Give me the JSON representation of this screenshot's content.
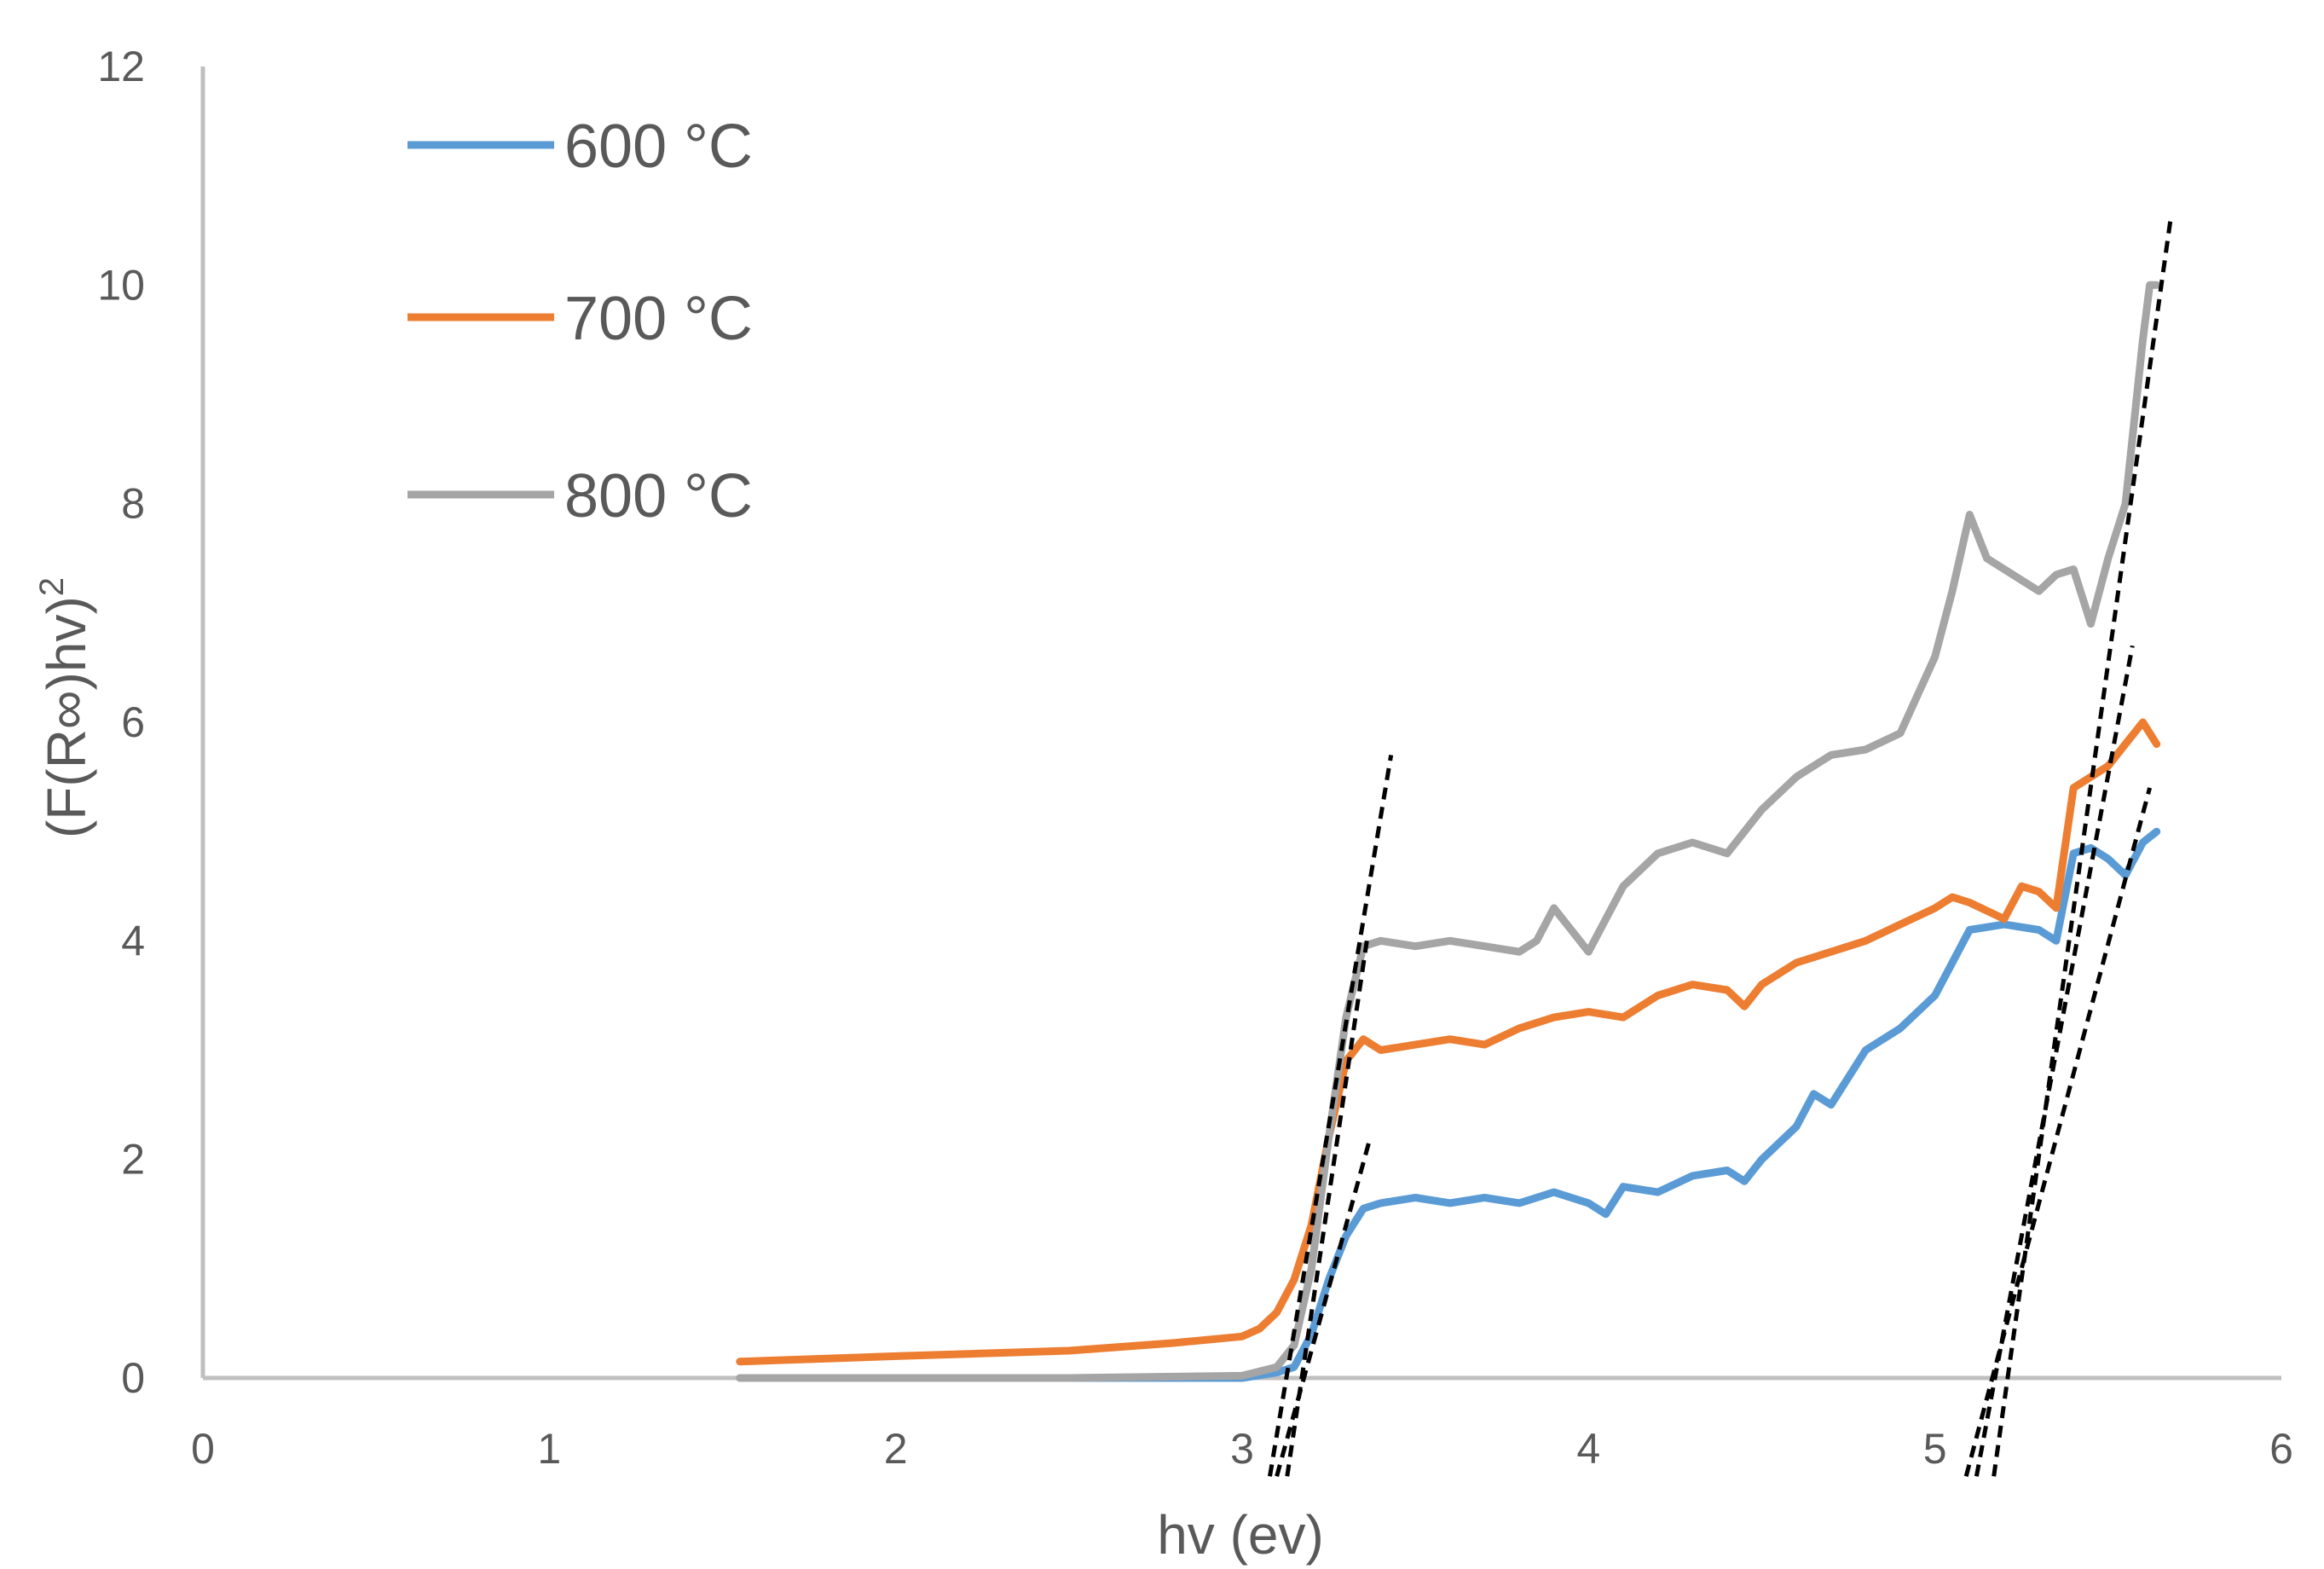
{
  "chart_data": {
    "type": "line",
    "title": "",
    "xlabel": "hv (ev)",
    "ylabel_main": "(F(R∞)hv)",
    "ylabel_sup": "2",
    "xlim": [
      0,
      6
    ],
    "ylim": [
      0,
      12
    ],
    "xticks": [
      "0",
      "1",
      "2",
      "3",
      "4",
      "5",
      "6"
    ],
    "yticks": [
      "0",
      "2",
      "4",
      "6",
      "8",
      "10",
      "12"
    ],
    "grid": false,
    "legend_position": "top-left",
    "series": [
      {
        "name": "600 °C",
        "color": "#5B9BD5",
        "x": [
          1.55,
          2.0,
          2.5,
          3.0,
          3.1,
          3.15,
          3.2,
          3.25,
          3.3,
          3.35,
          3.4,
          3.5,
          3.6,
          3.7,
          3.8,
          3.9,
          4.0,
          4.05,
          4.1,
          4.2,
          4.3,
          4.4,
          4.45,
          4.5,
          4.6,
          4.65,
          4.7,
          4.8,
          4.9,
          5.0,
          5.05,
          5.1,
          5.2,
          5.3,
          5.35,
          5.4,
          5.45,
          5.5,
          5.55,
          5.6,
          5.64
        ],
        "y": [
          0.0,
          0.0,
          0.0,
          0.0,
          0.05,
          0.1,
          0.4,
          0.9,
          1.3,
          1.55,
          1.6,
          1.65,
          1.6,
          1.65,
          1.6,
          1.7,
          1.6,
          1.5,
          1.75,
          1.7,
          1.85,
          1.9,
          1.8,
          2.0,
          2.3,
          2.6,
          2.5,
          3.0,
          3.2,
          3.5,
          3.8,
          4.1,
          4.15,
          4.1,
          4.0,
          4.8,
          4.85,
          4.75,
          4.6,
          4.9,
          5.0
        ]
      },
      {
        "name": "700 °C",
        "color": "#ED7D31",
        "x": [
          1.55,
          2.0,
          2.5,
          2.8,
          3.0,
          3.05,
          3.1,
          3.15,
          3.2,
          3.25,
          3.3,
          3.35,
          3.4,
          3.5,
          3.6,
          3.7,
          3.8,
          3.9,
          4.0,
          4.1,
          4.2,
          4.3,
          4.4,
          4.45,
          4.5,
          4.6,
          4.7,
          4.8,
          4.9,
          5.0,
          5.05,
          5.1,
          5.2,
          5.25,
          5.3,
          5.35,
          5.4,
          5.45,
          5.5,
          5.55,
          5.6,
          5.64
        ],
        "y": [
          0.15,
          0.2,
          0.25,
          0.32,
          0.38,
          0.45,
          0.6,
          0.9,
          1.4,
          2.2,
          2.9,
          3.1,
          3.0,
          3.05,
          3.1,
          3.05,
          3.2,
          3.3,
          3.35,
          3.3,
          3.5,
          3.6,
          3.55,
          3.4,
          3.6,
          3.8,
          3.9,
          4.0,
          4.15,
          4.3,
          4.4,
          4.35,
          4.2,
          4.5,
          4.45,
          4.3,
          5.4,
          5.5,
          5.6,
          5.8,
          6.0,
          5.8
        ]
      },
      {
        "name": "800 °C",
        "color": "#A5A5A5",
        "x": [
          1.55,
          2.0,
          2.5,
          3.0,
          3.1,
          3.15,
          3.2,
          3.25,
          3.3,
          3.35,
          3.4,
          3.5,
          3.6,
          3.7,
          3.8,
          3.85,
          3.9,
          3.95,
          4.0,
          4.05,
          4.1,
          4.2,
          4.3,
          4.4,
          4.45,
          4.5,
          4.6,
          4.7,
          4.8,
          4.9,
          5.0,
          5.05,
          5.1,
          5.15,
          5.2,
          5.25,
          5.3,
          5.35,
          5.4,
          5.45,
          5.5,
          5.55,
          5.6,
          5.62,
          5.64
        ],
        "y": [
          0.0,
          0.0,
          0.0,
          0.02,
          0.1,
          0.3,
          1.0,
          2.2,
          3.3,
          3.95,
          4.0,
          3.95,
          4.0,
          3.95,
          3.9,
          4.0,
          4.3,
          4.1,
          3.9,
          4.2,
          4.5,
          4.8,
          4.9,
          4.8,
          5.0,
          5.2,
          5.5,
          5.7,
          5.75,
          5.9,
          6.6,
          7.2,
          7.9,
          7.5,
          7.4,
          7.3,
          7.2,
          7.35,
          7.4,
          6.9,
          7.5,
          8.0,
          9.5,
          10.0,
          10.0
        ]
      }
    ],
    "fit_lines": [
      {
        "x": [
          3.08,
          3.43
        ],
        "y": [
          -0.9,
          5.7
        ]
      },
      {
        "x": [
          3.13,
          3.36
        ],
        "y": [
          -0.9,
          4.0
        ]
      },
      {
        "x": [
          3.1,
          3.37
        ],
        "y": [
          -0.9,
          2.2
        ]
      },
      {
        "x": [
          5.17,
          5.68
        ],
        "y": [
          -0.9,
          10.6
        ]
      },
      {
        "x": [
          5.12,
          5.57
        ],
        "y": [
          -0.9,
          6.7
        ]
      },
      {
        "x": [
          5.09,
          5.62
        ],
        "y": [
          -0.9,
          5.4
        ]
      }
    ]
  }
}
